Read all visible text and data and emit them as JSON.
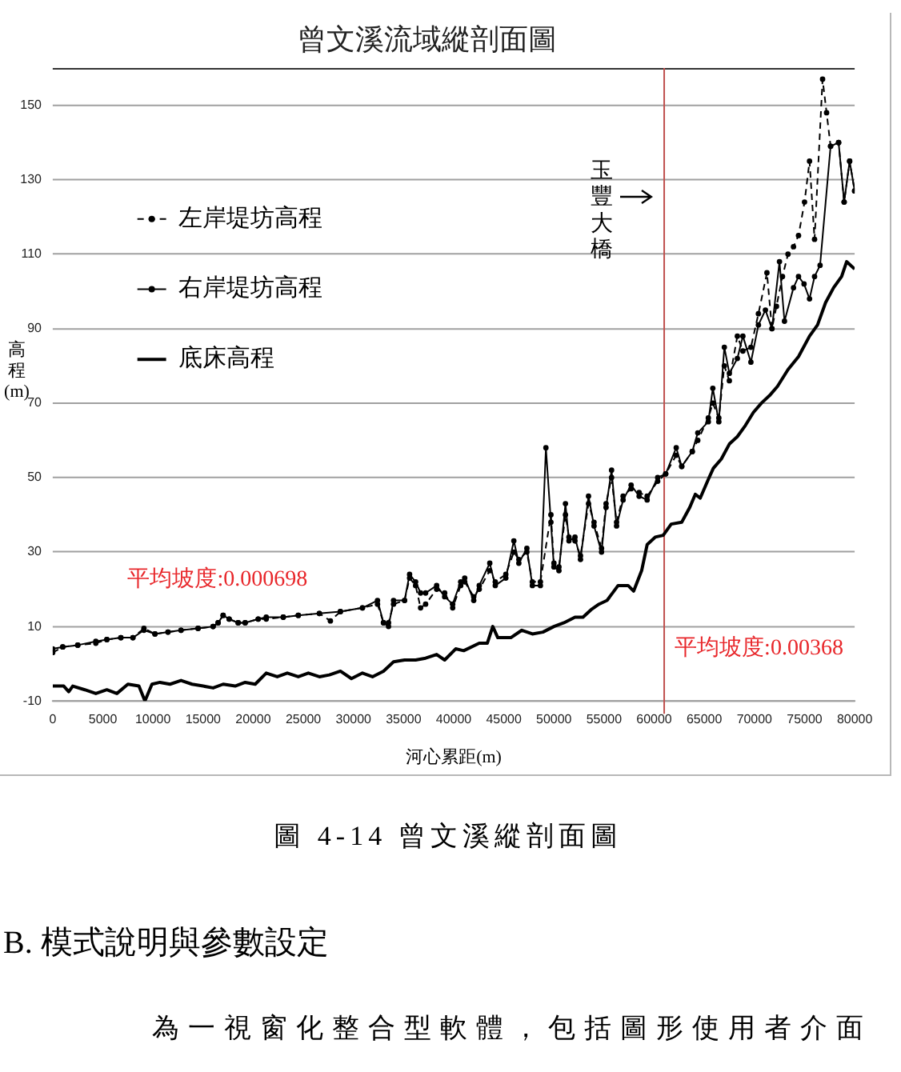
{
  "chart_data": {
    "type": "line",
    "title": "曾文溪流域縱剖面圖",
    "xlabel": "河心累距(m)",
    "ylabel": "高程(m)",
    "xlim": [
      0,
      80000
    ],
    "xticks": [
      0,
      5000,
      10000,
      15000,
      20000,
      25000,
      30000,
      35000,
      40000,
      45000,
      50000,
      55000,
      60000,
      65000,
      70000,
      75000,
      80000
    ],
    "ylim": [
      -10,
      160
    ],
    "yticks": [
      -10,
      10,
      30,
      50,
      70,
      90,
      110,
      130,
      150
    ],
    "grid": "y",
    "legend": "top left",
    "series": [
      {
        "name": "左岸堤坊高程",
        "color": "#000000",
        "line_style": "dashed",
        "marker": "circle",
        "x": [
          0,
          1000,
          2500,
          4300,
          5400,
          6800,
          8000,
          9100,
          10200,
          11500,
          12800,
          14500,
          16000,
          16500,
          17000,
          17600,
          18500,
          19200,
          20500,
          21300,
          23000,
          24500,
          26600,
          27700,
          28700,
          30900,
          32400,
          33000,
          33500,
          34000,
          35100,
          35600,
          36200,
          36700,
          37200,
          38300,
          39100,
          39900,
          40700,
          41100,
          42000,
          42550,
          43600,
          44150,
          45200,
          46000,
          46500,
          47300,
          47850,
          48650,
          49700,
          50000,
          50500,
          51150,
          51500,
          52100,
          52650,
          53450,
          54000,
          54750,
          55200,
          55750,
          56250,
          56900,
          57700,
          58500,
          59300,
          60350,
          61150,
          62200,
          62750,
          63800,
          64350,
          65400,
          65850,
          66450,
          67000,
          67500,
          68300,
          68850,
          69650,
          70400,
          71250,
          71750,
          72200,
          72800,
          73350,
          73900,
          74400,
          75000,
          75500,
          76000,
          76800,
          77200,
          77600,
          78400,
          78950,
          79500,
          80000
        ],
        "values": [
          3,
          4.5,
          5,
          5.5,
          6.5,
          7,
          7,
          9.5,
          8,
          8.5,
          9,
          9.5,
          10,
          11,
          13,
          12,
          11,
          11,
          12,
          12,
          12.5,
          13,
          13.5,
          11.5,
          14,
          15,
          16,
          11,
          11,
          16,
          17,
          23,
          21,
          15,
          16,
          20,
          19,
          15,
          21,
          22,
          18,
          20,
          25,
          22,
          24,
          30,
          28,
          30,
          22,
          22,
          40,
          27,
          26,
          40,
          34,
          33,
          29,
          43,
          38,
          31,
          43,
          50,
          38,
          45,
          47,
          46,
          45,
          49,
          51,
          56,
          53,
          57,
          60,
          66,
          70,
          66,
          80,
          76,
          88,
          84,
          85,
          94,
          105,
          90,
          96,
          104,
          110,
          112,
          115,
          124,
          135,
          114,
          157,
          148,
          139,
          140,
          124,
          135,
          127
        ]
      },
      {
        "name": "右岸堤坊高程",
        "color": "#000000",
        "line_style": "solid",
        "marker": "circle",
        "x": [
          0,
          1000,
          2500,
          4300,
          5400,
          6800,
          8000,
          9100,
          10200,
          11500,
          12800,
          14500,
          16000,
          16500,
          17000,
          17600,
          18500,
          19200,
          20500,
          21300,
          23000,
          24500,
          26600,
          28700,
          30900,
          32400,
          33000,
          33500,
          34000,
          35100,
          35600,
          36200,
          36700,
          37200,
          38300,
          39100,
          39900,
          40700,
          41100,
          42000,
          42550,
          43600,
          44150,
          45200,
          46000,
          46500,
          47300,
          47850,
          48650,
          49200,
          49700,
          50000,
          50500,
          51150,
          51500,
          52100,
          52650,
          53450,
          54000,
          54750,
          55200,
          55750,
          56250,
          56900,
          57700,
          58500,
          59300,
          60350,
          61150,
          62200,
          62750,
          63800,
          64350,
          65400,
          65850,
          66450,
          67000,
          67500,
          68300,
          68850,
          69650,
          70400,
          71100,
          71750,
          72500,
          73000,
          73900,
          74400,
          74950,
          75500,
          76000,
          76550,
          77600,
          78400,
          78950,
          79500,
          80000
        ],
        "values": [
          4,
          4.5,
          5,
          6,
          6.5,
          7,
          7,
          9,
          8,
          8.5,
          9,
          9.5,
          10,
          11,
          13,
          12,
          11,
          11,
          12,
          12.5,
          12.5,
          13,
          13.5,
          14,
          15,
          17,
          11,
          10,
          17,
          17,
          24,
          22,
          19,
          19,
          21,
          18,
          16,
          22,
          23,
          17,
          21,
          27,
          21,
          23,
          33,
          27,
          31,
          21,
          21,
          58,
          38,
          26,
          25,
          43,
          33,
          34,
          28,
          45,
          37,
          30,
          42,
          52,
          37,
          44,
          48,
          45,
          44,
          50,
          51,
          58,
          53,
          57,
          62,
          65,
          74,
          65,
          85,
          78,
          82,
          88,
          81,
          91,
          95,
          90,
          108,
          92,
          101,
          104,
          102,
          98,
          104,
          107,
          139,
          140,
          124,
          135,
          127
        ]
      },
      {
        "name": "底床高程",
        "color": "#000000",
        "line_style": "solid",
        "marker": "none",
        "x": [
          0,
          1100,
          1600,
          2000,
          3200,
          4300,
          5400,
          6400,
          7500,
          8600,
          9200,
          9900,
          10700,
          11700,
          12800,
          13900,
          15000,
          16000,
          17000,
          18200,
          19200,
          20200,
          21300,
          22400,
          23400,
          24500,
          25500,
          26600,
          27600,
          28700,
          29800,
          30900,
          31900,
          33000,
          34000,
          35100,
          36200,
          37200,
          38300,
          39100,
          40200,
          41000,
          42550,
          43350,
          43900,
          44400,
          45700,
          46800,
          47850,
          48900,
          50000,
          51000,
          52100,
          52900,
          53700,
          54500,
          55300,
          56400,
          57400,
          57950,
          58750,
          59300,
          60100,
          60900,
          61700,
          62750,
          63550,
          64100,
          64600,
          65400,
          65900,
          66700,
          67500,
          68300,
          69100,
          69900,
          70700,
          71500,
          72300,
          73350,
          74400,
          75500,
          76300,
          77100,
          77900,
          78700,
          79200,
          80000
        ],
        "values": [
          -6,
          -6,
          -7.5,
          -6,
          -7,
          -8,
          -7,
          -8,
          -5.5,
          -6,
          -10,
          -5.5,
          -5,
          -5.5,
          -4.5,
          -5.5,
          -6,
          -6.5,
          -5.5,
          -6,
          -5,
          -5.5,
          -2.5,
          -3.5,
          -2.5,
          -3.5,
          -2.5,
          -3.5,
          -3,
          -2,
          -4,
          -2.5,
          -3.5,
          -2,
          0.5,
          1,
          1,
          1.5,
          2.5,
          1,
          4,
          3.5,
          5.5,
          5.5,
          10,
          7,
          7,
          9,
          8,
          8.5,
          10,
          11,
          12.5,
          12.5,
          14.5,
          16,
          17,
          21,
          21,
          19.5,
          25,
          32,
          34,
          34.5,
          37.5,
          38,
          42,
          45.5,
          44.5,
          49.5,
          52.5,
          55,
          59,
          61,
          64,
          67.5,
          70,
          72,
          74.5,
          79,
          82.5,
          88,
          91,
          97,
          101,
          104,
          108,
          106
        ]
      }
    ],
    "ref_lines": [
      {
        "axis": "x",
        "value": 61000,
        "label": "玉豐大橋",
        "color": "#c0504d"
      }
    ],
    "annotations": [
      "平均坡度:0.000698",
      "平均坡度:0.00368",
      "圖 4-14 曾文溪縱剖面圖",
      "B. 模式說明與參數設定",
      "為一視窗化整合型軟體，包括圖形使用者介面"
    ]
  }
}
